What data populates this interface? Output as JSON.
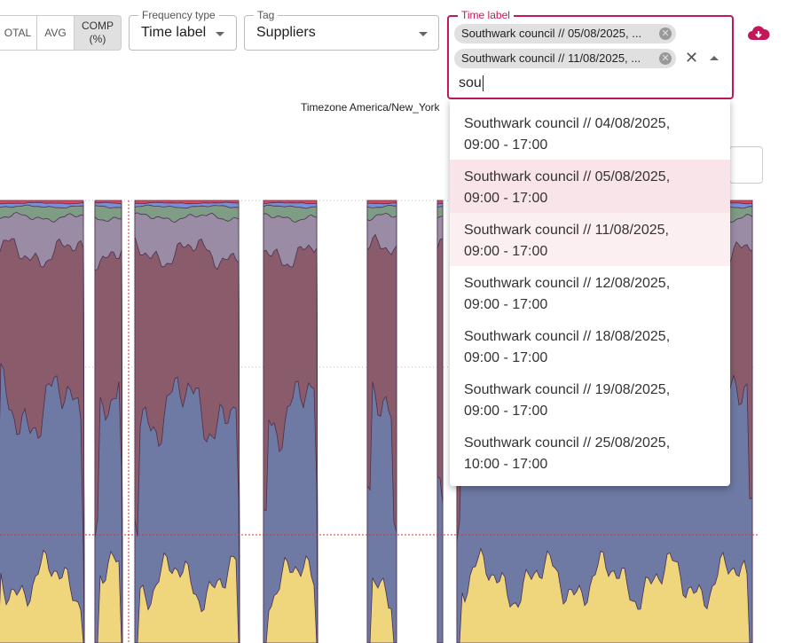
{
  "toolbar": {
    "buttons": [
      "OTAL",
      "AVG",
      "COMP (%)"
    ]
  },
  "fields": {
    "frequency_type": {
      "label": "Frequency type",
      "value": "Time label"
    },
    "tag": {
      "label": "Tag",
      "value": "Suppliers"
    },
    "time_label": {
      "label": "Time label",
      "chips": [
        "Southwark council // 05/08/2025, ...",
        "Southwark council // 11/08/2025, ..."
      ],
      "input": "sou"
    }
  },
  "chart": {
    "timezone": "Timezone America/New_York"
  },
  "dropdown": {
    "options": [
      "Southwark council // 04/08/2025, 09:00 - 17:00",
      "Southwark council // 05/08/2025, 09:00 - 17:00",
      "Southwark council // 11/08/2025, 09:00 - 17:00",
      "Southwark council // 12/08/2025, 09:00 - 17:00",
      "Southwark council // 18/08/2025, 09:00 - 17:00",
      "Southwark council // 19/08/2025, 09:00 - 17:00",
      "Southwark council // 25/08/2025, 10:00 - 17:00"
    ]
  }
}
